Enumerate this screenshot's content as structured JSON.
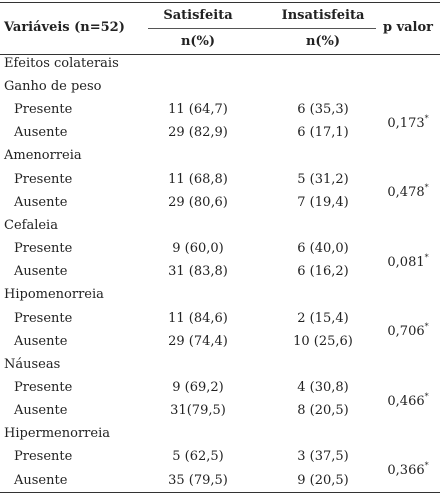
{
  "header": {
    "variables": "Variáveis (n=52)",
    "satisfied": "Satisfeita",
    "unsatisfied": "Insatisfeita",
    "pvalue": "p valor",
    "unit_satisfied": "n(%)",
    "unit_unsatisfied": "n(%)"
  },
  "section_title": "Efeitos colaterais",
  "groups": [
    {
      "name": "Ganho de peso",
      "p": "0,173",
      "mark": "*",
      "rows": [
        {
          "label": "Presente",
          "sat": "11 (64,7)",
          "ins": "6 (35,3)"
        },
        {
          "label": "Ausente",
          "sat": "29 (82,9)",
          "ins": "6 (17,1)"
        }
      ]
    },
    {
      "name": "Amenorreia",
      "p": "0,478",
      "mark": "*",
      "rows": [
        {
          "label": "Presente",
          "sat": "11 (68,8)",
          "ins": "5 (31,2)"
        },
        {
          "label": "Ausente",
          "sat": "29 (80,6)",
          "ins": "7 (19,4)"
        }
      ]
    },
    {
      "name": "Cefaleia",
      "p": "0,081",
      "mark": "*",
      "rows": [
        {
          "label": "Presente",
          "sat": "9 (60,0)",
          "ins": "6 (40,0)"
        },
        {
          "label": "Ausente",
          "sat": "31 (83,8)",
          "ins": "6 (16,2)"
        }
      ]
    },
    {
      "name": "Hipomenorreia",
      "p": "0,706",
      "mark": "*",
      "rows": [
        {
          "label": "Presente",
          "sat": "11 (84,6)",
          "ins": "2 (15,4)"
        },
        {
          "label": "Ausente",
          "sat": "29 (74,4)",
          "ins": "10 (25,6)"
        }
      ]
    },
    {
      "name": "Náuseas",
      "p": "0,466",
      "mark": "*",
      "rows": [
        {
          "label": "Presente",
          "sat": "9 (69,2)",
          "ins": "4 (30,8)"
        },
        {
          "label": "Ausente",
          "sat": "31(79,5)",
          "ins": "8 (20,5)"
        }
      ]
    },
    {
      "name": "Hipermenorreia",
      "p": "0,366",
      "mark": "*",
      "rows": [
        {
          "label": "Presente",
          "sat": "5 (62,5)",
          "ins": "3 (37,5)"
        },
        {
          "label": "Ausente",
          "sat": "35 (79,5)",
          "ins": "9 (20,5)"
        }
      ]
    }
  ]
}
